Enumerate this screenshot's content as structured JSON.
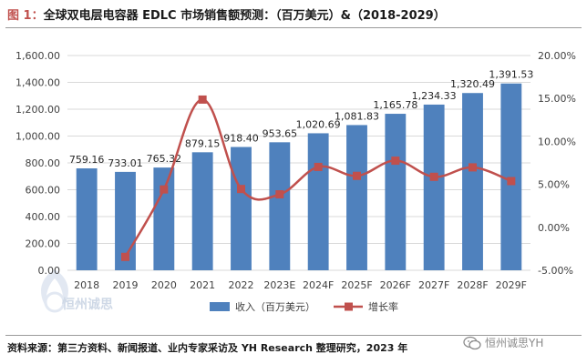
{
  "header": {
    "figure_label": "图 1：",
    "title": "全球双电层电容器 EDLC 市场销售额预测：（百万美元）&（2018-2029）"
  },
  "chart_data": {
    "type": "bar+line",
    "categories": [
      "2018",
      "2019",
      "2020",
      "2021",
      "2022",
      "2023E",
      "2024F",
      "2025F",
      "2026F",
      "2027F",
      "2028F",
      "2029F"
    ],
    "series": [
      {
        "name": "收入（百万美元）",
        "kind": "bar",
        "axis": "left",
        "values": [
          759.16,
          733.01,
          765.32,
          879.15,
          918.4,
          953.65,
          1020.69,
          1081.83,
          1165.78,
          1234.33,
          1320.49,
          1391.53
        ],
        "labels": [
          "759.16",
          "733.01",
          "765.32",
          "879.15",
          "918.40",
          "953.65",
          "1,020.69",
          "1,081.83",
          "1,165.78",
          "1,234.33",
          "1,320.49",
          "1,391.53"
        ],
        "color": "#4f81bd"
      },
      {
        "name": "增长率",
        "kind": "line",
        "axis": "right",
        "values": [
          null,
          -3.44,
          4.41,
          14.87,
          4.46,
          3.84,
          7.03,
          5.99,
          7.76,
          5.88,
          6.98,
          5.38
        ],
        "color": "#c0504d"
      }
    ],
    "left_axis": {
      "min": 0,
      "max": 1600,
      "step": 200,
      "tick_labels": [
        "0.00",
        "200.00",
        "400.00",
        "600.00",
        "800.00",
        "1,000.00",
        "1,200.00",
        "1,400.00",
        "1,600.00"
      ]
    },
    "right_axis": {
      "min": -5,
      "max": 20,
      "step": 5,
      "tick_labels": [
        "-5.00%",
        "0.00%",
        "5.00%",
        "10.00%",
        "15.00%",
        "20.00%"
      ]
    },
    "grid": true,
    "legend_position": "bottom"
  },
  "logo": {
    "text": "恒州诚思"
  },
  "footer": {
    "source": "资料来源：第三方资料、新闻报道、业内专家采访及 YH Research 整理研究，2023 年",
    "watermark": "恒州诚思YH"
  }
}
